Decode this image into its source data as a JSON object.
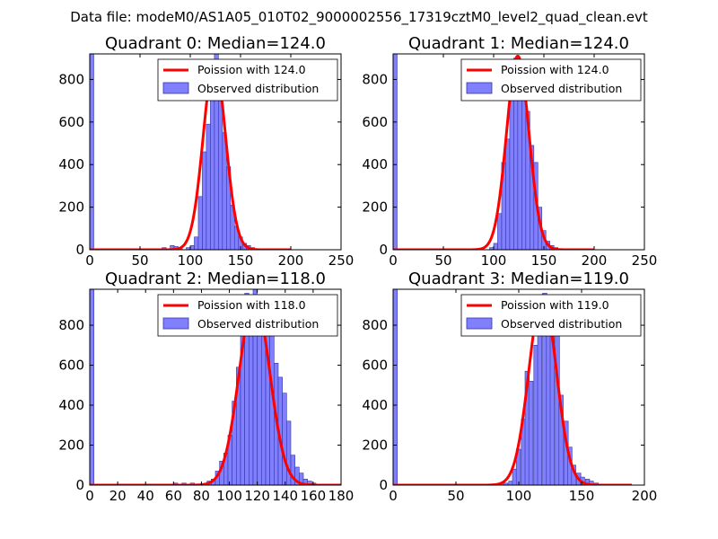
{
  "suptitle": "Data file: modeM0/AS1A05_010T02_9000002556_17319cztM0_level2_quad_clean.evt",
  "colors": {
    "bar_fill": "#8080ff",
    "bar_edge": "#3333aa",
    "poisson_line": "#ff0000",
    "axis": "#000000"
  },
  "chart_data": [
    {
      "type": "bar",
      "title": "Quadrant 0: Median=124.0",
      "xlim": [
        0,
        250
      ],
      "ylim": [
        0,
        920
      ],
      "xticks": [
        0,
        50,
        100,
        150,
        200,
        250
      ],
      "yticks": [
        0,
        200,
        400,
        600,
        800
      ],
      "bin_width": 4,
      "bins": [
        [
          0,
          920
        ],
        [
          72,
          10
        ],
        [
          80,
          20
        ],
        [
          84,
          15
        ],
        [
          88,
          10
        ],
        [
          96,
          10
        ],
        [
          100,
          20
        ],
        [
          104,
          60
        ],
        [
          108,
          250
        ],
        [
          112,
          460
        ],
        [
          116,
          590
        ],
        [
          120,
          890
        ],
        [
          124,
          920
        ],
        [
          128,
          760
        ],
        [
          132,
          550
        ],
        [
          136,
          390
        ],
        [
          140,
          210
        ],
        [
          144,
          110
        ],
        [
          148,
          60
        ],
        [
          152,
          30
        ],
        [
          156,
          20
        ],
        [
          160,
          10
        ]
      ],
      "poisson_mean": 124.0,
      "poisson_peak": 880,
      "poisson_xrange": [
        0,
        200
      ],
      "legend": [
        "Poission with 124.0",
        "Observed distribution"
      ]
    },
    {
      "type": "bar",
      "title": "Quadrant 1: Median=124.0",
      "xlim": [
        0,
        250
      ],
      "ylim": [
        0,
        920
      ],
      "xticks": [
        0,
        50,
        100,
        150,
        200,
        250
      ],
      "yticks": [
        0,
        200,
        400,
        600,
        800
      ],
      "bin_width": 4,
      "bins": [
        [
          0,
          920
        ],
        [
          96,
          10
        ],
        [
          100,
          30
        ],
        [
          104,
          170
        ],
        [
          108,
          410
        ],
        [
          112,
          520
        ],
        [
          116,
          740
        ],
        [
          120,
          900
        ],
        [
          124,
          890
        ],
        [
          128,
          840
        ],
        [
          132,
          650
        ],
        [
          136,
          490
        ],
        [
          140,
          410
        ],
        [
          144,
          200
        ],
        [
          148,
          90
        ],
        [
          152,
          40
        ],
        [
          156,
          20
        ],
        [
          160,
          10
        ]
      ],
      "poisson_mean": 124.0,
      "poisson_peak": 910,
      "poisson_xrange": [
        0,
        200
      ],
      "legend": [
        "Poission with 124.0",
        "Observed distribution"
      ]
    },
    {
      "type": "bar",
      "title": "Quadrant 2: Median=118.0",
      "xlim": [
        0,
        180
      ],
      "ylim": [
        0,
        980
      ],
      "xticks": [
        0,
        20,
        40,
        60,
        80,
        100,
        120,
        140,
        160,
        180
      ],
      "yticks": [
        0,
        200,
        400,
        600,
        800
      ],
      "bin_width": 3,
      "bins": [
        [
          0,
          980
        ],
        [
          60,
          10
        ],
        [
          66,
          10
        ],
        [
          72,
          10
        ],
        [
          84,
          20
        ],
        [
          87,
          30
        ],
        [
          90,
          70
        ],
        [
          93,
          120
        ],
        [
          96,
          160
        ],
        [
          99,
          250
        ],
        [
          102,
          420
        ],
        [
          105,
          590
        ],
        [
          108,
          880
        ],
        [
          111,
          960
        ],
        [
          114,
          840
        ],
        [
          117,
          980
        ],
        [
          120,
          850
        ],
        [
          123,
          780
        ],
        [
          126,
          950
        ],
        [
          129,
          760
        ],
        [
          132,
          610
        ],
        [
          135,
          540
        ],
        [
          138,
          460
        ],
        [
          141,
          320
        ],
        [
          144,
          150
        ],
        [
          147,
          90
        ],
        [
          150,
          60
        ],
        [
          153,
          30
        ],
        [
          156,
          20
        ],
        [
          159,
          10
        ]
      ],
      "poisson_mean": 118.0,
      "poisson_peak": 940,
      "poisson_xrange": [
        0,
        180
      ],
      "legend": [
        "Poission with 118.0",
        "Observed distribution"
      ]
    },
    {
      "type": "bar",
      "title": "Quadrant 3: Median=119.0",
      "xlim": [
        0,
        200
      ],
      "ylim": [
        0,
        980
      ],
      "xticks": [
        0,
        50,
        100,
        150,
        200
      ],
      "yticks": [
        0,
        200,
        400,
        600,
        800
      ],
      "bin_width": 3.4,
      "bins": [
        [
          0,
          980
        ],
        [
          84,
          10
        ],
        [
          88,
          10
        ],
        [
          92,
          20
        ],
        [
          95,
          80
        ],
        [
          98,
          180
        ],
        [
          102,
          330
        ],
        [
          105,
          570
        ],
        [
          108,
          520
        ],
        [
          112,
          700
        ],
        [
          115,
          790
        ],
        [
          119,
          960
        ],
        [
          122,
          900
        ],
        [
          125,
          860
        ],
        [
          129,
          750
        ],
        [
          132,
          450
        ],
        [
          136,
          320
        ],
        [
          139,
          190
        ],
        [
          142,
          100
        ],
        [
          146,
          60
        ],
        [
          149,
          40
        ],
        [
          153,
          30
        ],
        [
          156,
          20
        ],
        [
          160,
          10
        ]
      ],
      "poisson_mean": 119.0,
      "poisson_peak": 950,
      "poisson_xrange": [
        0,
        190
      ],
      "legend": [
        "Poission with 119.0",
        "Observed distribution"
      ]
    }
  ]
}
